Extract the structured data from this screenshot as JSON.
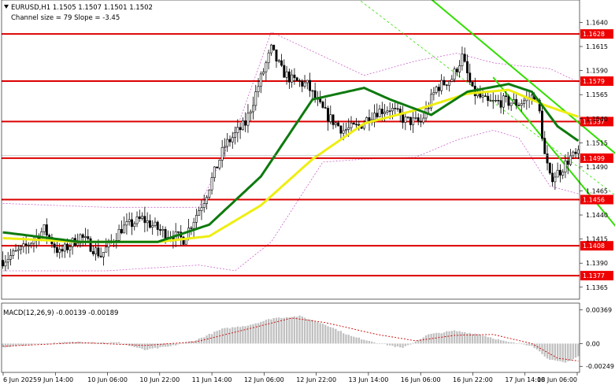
{
  "header": {
    "symbol_line": "EURUSD,H1  1.1505 1.1507 1.1501 1.1502",
    "channel_line": "Channel size = 79 Slope = -3.45"
  },
  "chart_data": [
    {
      "type": "candlestick",
      "title": "EURUSD,H1",
      "ylim": [
        1.1355,
        1.166
      ],
      "y_ticks": [
        "1.1640",
        "1.1615",
        "1.1590",
        "1.1565",
        "1.1540",
        "1.1515",
        "1.1490",
        "1.1465",
        "1.1440",
        "1.1415",
        "1.1390",
        "1.1365"
      ],
      "x_ticks": [
        "6 Jun 2025",
        "9 Jun 14:00",
        "10 Jun 06:00",
        "10 Jun 22:00",
        "11 Jun 14:00",
        "12 Jun 06:00",
        "12 Jun 22:00",
        "13 Jun 14:00",
        "16 Jun 06:00",
        "16 Jun 22:00",
        "17 Jun 14:00",
        "18 Jun 06:00"
      ],
      "levels": [
        {
          "value": 1.1628,
          "label": "1.1628"
        },
        {
          "value": 1.1579,
          "label": "1.1579"
        },
        {
          "value": 1.1537,
          "label": "1.1537"
        },
        {
          "value": 1.1499,
          "label": "1.1499"
        },
        {
          "value": 1.1456,
          "label": "1.1456"
        },
        {
          "value": 1.1408,
          "label": "1.1408"
        },
        {
          "value": 1.1377,
          "label": "1.1377"
        }
      ],
      "current_price": 1.1502,
      "close_anchors": [
        [
          0,
          1.1393
        ],
        [
          8,
          1.1405
        ],
        [
          16,
          1.1425
        ],
        [
          22,
          1.14
        ],
        [
          30,
          1.1418
        ],
        [
          38,
          1.1398
        ],
        [
          46,
          1.1426
        ],
        [
          54,
          1.1436
        ],
        [
          62,
          1.1422
        ],
        [
          70,
          1.1415
        ],
        [
          78,
          1.1456
        ],
        [
          86,
          1.1512
        ],
        [
          94,
          1.1535
        ],
        [
          100,
          1.1582
        ],
        [
          104,
          1.1612
        ],
        [
          108,
          1.159
        ],
        [
          112,
          1.158
        ],
        [
          118,
          1.1575
        ],
        [
          122,
          1.1556
        ],
        [
          126,
          1.1542
        ],
        [
          132,
          1.1528
        ],
        [
          138,
          1.1532
        ],
        [
          144,
          1.1547
        ],
        [
          150,
          1.1551
        ],
        [
          156,
          1.1538
        ],
        [
          162,
          1.1536
        ],
        [
          168,
          1.1572
        ],
        [
          174,
          1.1582
        ],
        [
          178,
          1.1604
        ],
        [
          182,
          1.1568
        ],
        [
          188,
          1.1556
        ],
        [
          194,
          1.1558
        ],
        [
          200,
          1.1556
        ],
        [
          206,
          1.1564
        ],
        [
          208,
          1.1546
        ],
        [
          210,
          1.1502
        ],
        [
          212,
          1.1478
        ],
        [
          216,
          1.1486
        ],
        [
          220,
          1.15
        ],
        [
          223,
          1.1502
        ]
      ],
      "channel": {
        "upper": [
          [
            150,
            1.17
          ],
          [
            240,
            1.1498
          ]
        ],
        "lower": [
          [
            190,
            1.1583
          ],
          [
            240,
            1.142
          ]
        ],
        "mid": [
          [
            130,
            1.168
          ],
          [
            240,
            1.1455
          ]
        ]
      },
      "ma_fast_anchors": [
        [
          0,
          1.1422
        ],
        [
          30,
          1.1412
        ],
        [
          60,
          1.1412
        ],
        [
          80,
          1.143
        ],
        [
          100,
          1.148
        ],
        [
          120,
          1.156
        ],
        [
          140,
          1.1572
        ],
        [
          150,
          1.156
        ],
        [
          166,
          1.1544
        ],
        [
          180,
          1.1568
        ],
        [
          196,
          1.1576
        ],
        [
          205,
          1.1568
        ],
        [
          215,
          1.1532
        ],
        [
          223,
          1.1517
        ]
      ],
      "ma_slow_anchors": [
        [
          0,
          1.1416
        ],
        [
          30,
          1.1412
        ],
        [
          60,
          1.1412
        ],
        [
          80,
          1.1418
        ],
        [
          100,
          1.145
        ],
        [
          120,
          1.1498
        ],
        [
          140,
          1.1535
        ],
        [
          160,
          1.1549
        ],
        [
          180,
          1.1566
        ],
        [
          196,
          1.157
        ],
        [
          210,
          1.1554
        ],
        [
          223,
          1.1542
        ]
      ],
      "bb_upper_anchors": [
        [
          0,
          1.1452
        ],
        [
          40,
          1.1448
        ],
        [
          76,
          1.1448
        ],
        [
          92,
          1.154
        ],
        [
          104,
          1.163
        ],
        [
          124,
          1.1605
        ],
        [
          140,
          1.1585
        ],
        [
          160,
          1.16
        ],
        [
          176,
          1.1608
        ],
        [
          190,
          1.1598
        ],
        [
          200,
          1.1595
        ],
        [
          212,
          1.1592
        ],
        [
          223,
          1.1578
        ]
      ],
      "bb_lower_anchors": [
        [
          0,
          1.1382
        ],
        [
          40,
          1.1382
        ],
        [
          76,
          1.1388
        ],
        [
          90,
          1.1382
        ],
        [
          104,
          1.1412
        ],
        [
          124,
          1.1495
        ],
        [
          140,
          1.1498
        ],
        [
          160,
          1.15
        ],
        [
          176,
          1.1518
        ],
        [
          190,
          1.1528
        ],
        [
          200,
          1.152
        ],
        [
          212,
          1.147
        ],
        [
          223,
          1.1462
        ]
      ]
    },
    {
      "type": "bar",
      "title": "MACD(12,26,9)",
      "series": [
        {
          "name": "MACD",
          "values": "histogram"
        },
        {
          "name": "Signal",
          "values": "dotted line"
        }
      ],
      "header_label": "MACD(12,26,9) -0.00139 -0.00189",
      "ylim": [
        -0.0029,
        0.004
      ],
      "y_ticks": [
        "0.00369",
        "0.00",
        "-0.00249"
      ],
      "macd_anchors": [
        [
          0,
          -0.0004
        ],
        [
          15,
          0.0
        ],
        [
          30,
          0.0002
        ],
        [
          45,
          0.0001
        ],
        [
          55,
          -0.0007
        ],
        [
          65,
          -0.0003
        ],
        [
          75,
          0.0004
        ],
        [
          85,
          0.0016
        ],
        [
          95,
          0.002
        ],
        [
          105,
          0.0028
        ],
        [
          115,
          0.003
        ],
        [
          125,
          0.0021
        ],
        [
          135,
          0.0008
        ],
        [
          145,
          0.0001
        ],
        [
          155,
          -0.0005
        ],
        [
          165,
          0.001
        ],
        [
          175,
          0.0014
        ],
        [
          185,
          0.001
        ],
        [
          195,
          0.0002
        ],
        [
          205,
          -0.0002
        ],
        [
          212,
          -0.0018
        ],
        [
          218,
          -0.0021
        ],
        [
          223,
          -0.0014
        ]
      ],
      "signal_anchors": [
        [
          0,
          -0.0003
        ],
        [
          30,
          0.0001
        ],
        [
          55,
          -0.0002
        ],
        [
          75,
          0.0002
        ],
        [
          95,
          0.0016
        ],
        [
          112,
          0.0028
        ],
        [
          125,
          0.0023
        ],
        [
          145,
          0.001
        ],
        [
          160,
          0.0003
        ],
        [
          175,
          0.0009
        ],
        [
          190,
          0.001
        ],
        [
          205,
          0.0
        ],
        [
          215,
          -0.0016
        ],
        [
          223,
          -0.0019
        ]
      ]
    }
  ],
  "colors": {
    "level_line": "#dd0000",
    "level_label_bg": "#ee0000",
    "channel": "#33dd00",
    "ma_fast": "#0e7a0e",
    "ma_slow": "#eeee11",
    "bollinger": "#cc66cc",
    "candle": "#000000",
    "macd_hist": "#c0c0c0",
    "macd_signal": "#cc0000"
  }
}
